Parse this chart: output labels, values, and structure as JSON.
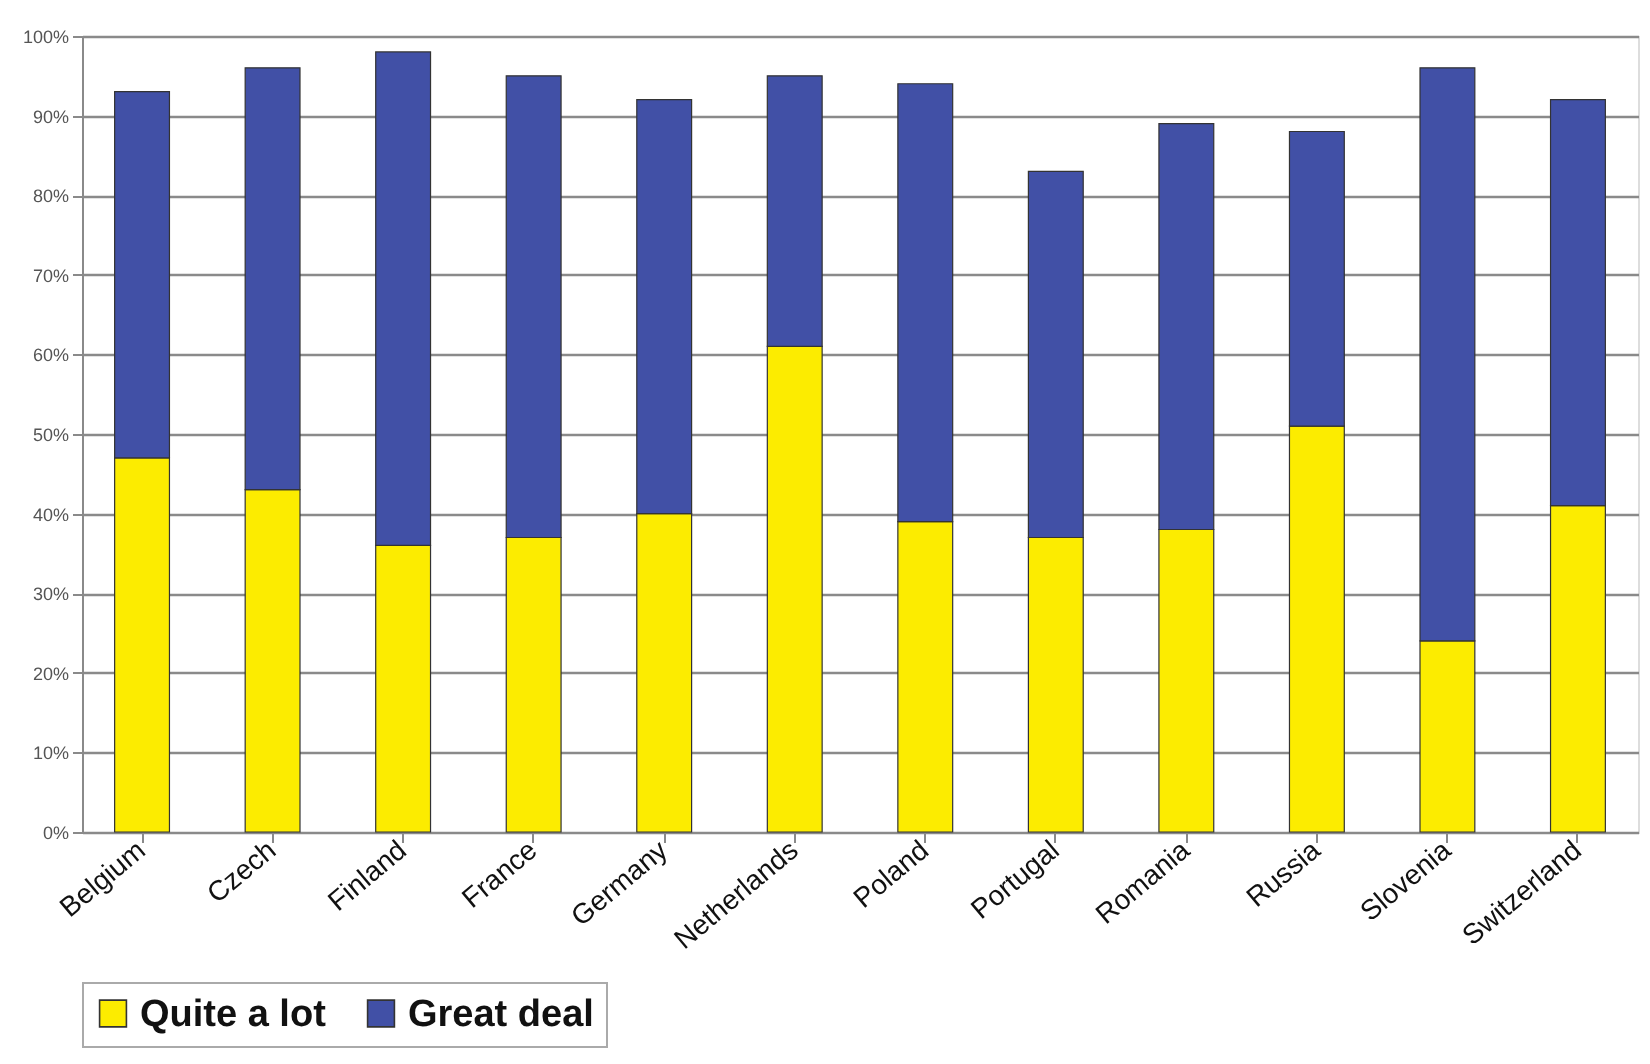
{
  "chart_data": {
    "type": "bar",
    "stacked": true,
    "categories": [
      "Belgium",
      "Czech",
      "Finland",
      "France",
      "Germany",
      "Netherlands",
      "Poland",
      "Portugal",
      "Romania",
      "Russia",
      "Slovenia",
      "Switzerland"
    ],
    "series": [
      {
        "name": "Quite a lot",
        "color": "#fcec00",
        "values": [
          47,
          43,
          36,
          37,
          40,
          61,
          39,
          37,
          38,
          51,
          24,
          41
        ]
      },
      {
        "name": "Great deal",
        "color": "#4150a6",
        "values": [
          46,
          53,
          62,
          58,
          52,
          34,
          55,
          46,
          51,
          37,
          72,
          51
        ]
      }
    ],
    "ylim": [
      0,
      100
    ],
    "yticks": [
      {
        "value": 0,
        "label": "0%"
      },
      {
        "value": 10,
        "label": "10%"
      },
      {
        "value": 20,
        "label": "20%"
      },
      {
        "value": 30,
        "label": "30%"
      },
      {
        "value": 40,
        "label": "40%"
      },
      {
        "value": 50,
        "label": "50%"
      },
      {
        "value": 60,
        "label": "60%"
      },
      {
        "value": 70,
        "label": "70%"
      },
      {
        "value": 80,
        "label": "80%"
      },
      {
        "value": 90,
        "label": "90%"
      },
      {
        "value": 100,
        "label": "100%"
      }
    ],
    "grid": "y",
    "legend": "bottom"
  }
}
